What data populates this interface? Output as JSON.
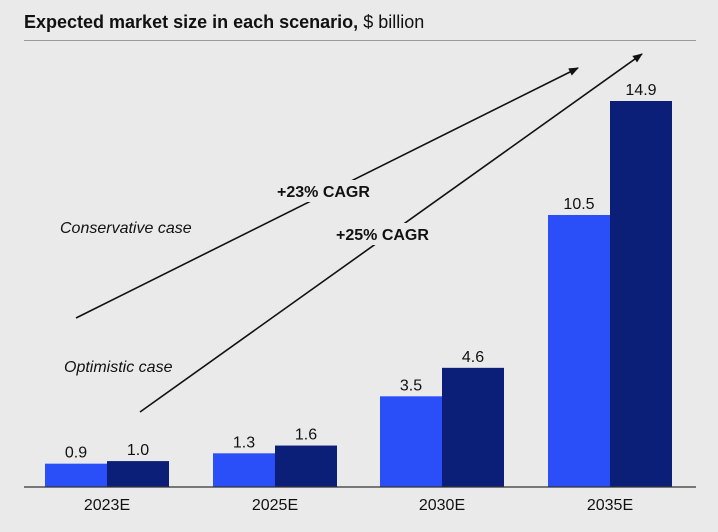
{
  "header": {
    "title_bold": "Expected market size in each scenario,",
    "title_unit": "$ billion"
  },
  "chart_data": {
    "type": "bar",
    "title": "Expected market size in each scenario, $ billion",
    "categories": [
      "2023E",
      "2025E",
      "2030E",
      "2035E"
    ],
    "series": [
      {
        "name": "Conservative case",
        "values": [
          0.9,
          1.3,
          3.5,
          10.5
        ],
        "color": "#2a4ef7"
      },
      {
        "name": "Optimistic case",
        "values": [
          1.0,
          1.6,
          4.6,
          14.9
        ],
        "color": "#0b1f78"
      }
    ],
    "data_labels": [
      [
        "0.9",
        "1.3",
        "3.5",
        "10.5"
      ],
      [
        "1.0",
        "1.6",
        "4.6",
        "14.9"
      ]
    ],
    "ylim": [
      0,
      15
    ],
    "grid": false,
    "annotations": [
      {
        "series": "Conservative case",
        "text": "+23% CAGR"
      },
      {
        "series": "Optimistic case",
        "text": "+25% CAGR"
      }
    ]
  }
}
